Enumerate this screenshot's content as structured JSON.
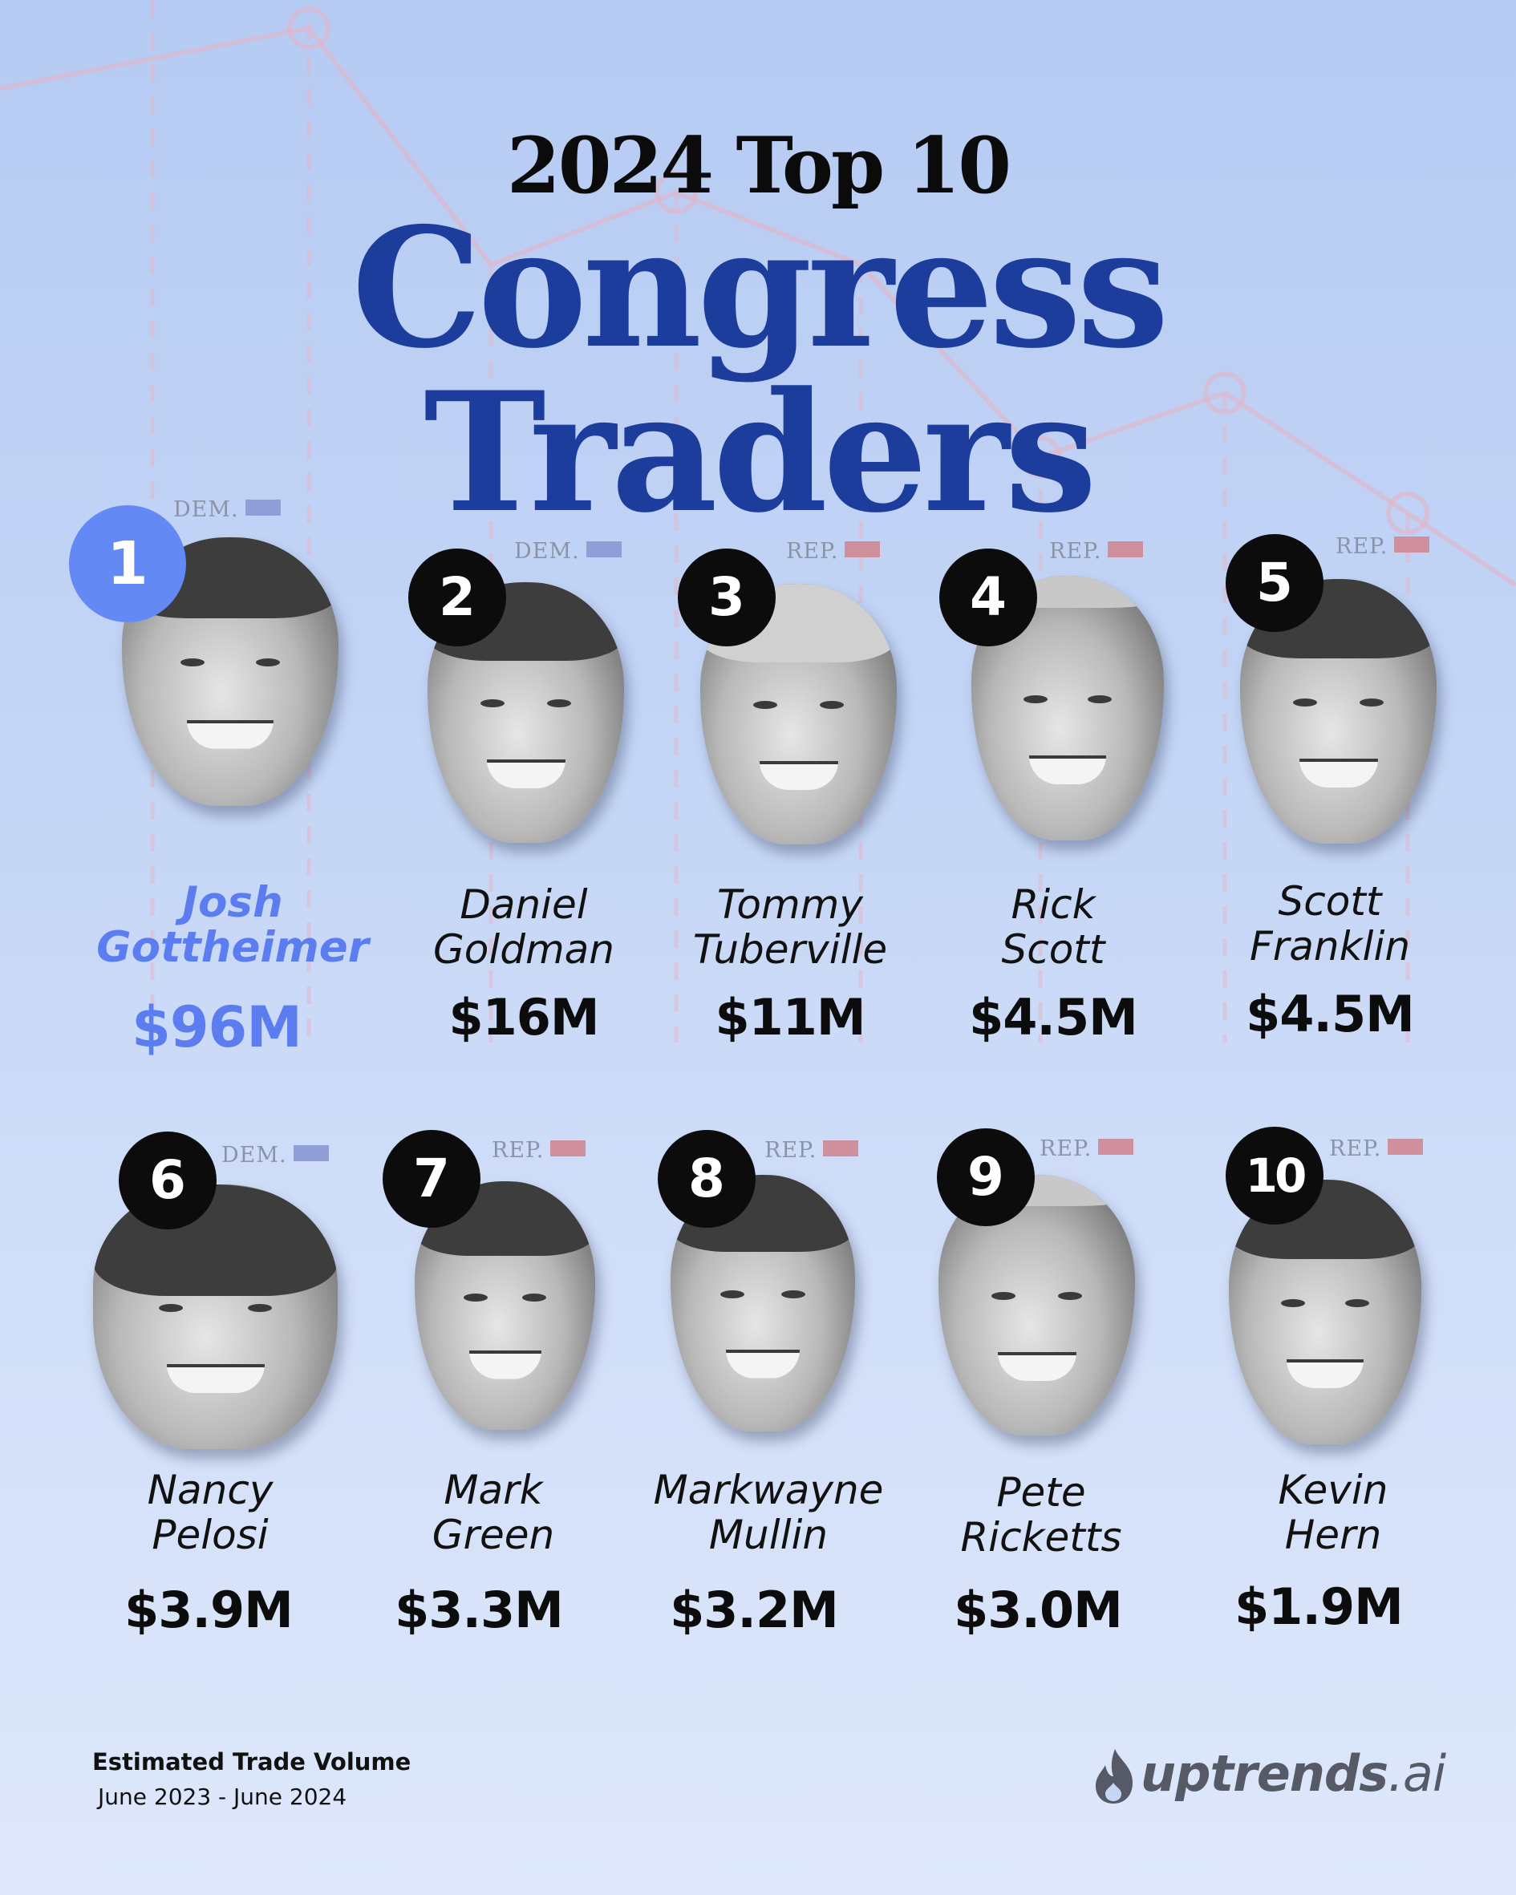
{
  "header": {
    "subtitle": "2024 Top 10",
    "title": "Congress Traders"
  },
  "colors": {
    "title_blue": "#1c3d9c",
    "highlight_blue": "#5b7df0",
    "dem_flag": "#8f9ed6",
    "rep_flag": "#cf8f9c",
    "background_top": "#b6cbf3",
    "background_bottom": "#dfe8fb"
  },
  "traders": [
    {
      "rank": "1",
      "first": "Josh",
      "last": "Gottheimer",
      "amount": "$96M",
      "party": "DEM.",
      "highlight": true
    },
    {
      "rank": "2",
      "first": "Daniel",
      "last": "Goldman",
      "amount": "$16M",
      "party": "DEM."
    },
    {
      "rank": "3",
      "first": "Tommy",
      "last": "Tuberville",
      "amount": "$11M",
      "party": "REP."
    },
    {
      "rank": "4",
      "first": "Rick",
      "last": "Scott",
      "amount": "$4.5M",
      "party": "REP."
    },
    {
      "rank": "5",
      "first": "Scott",
      "last": "Franklin",
      "amount": "$4.5M",
      "party": "REP."
    },
    {
      "rank": "6",
      "first": "Nancy",
      "last": "Pelosi",
      "amount": "$3.9M",
      "party": "DEM."
    },
    {
      "rank": "7",
      "first": "Mark",
      "last": "Green",
      "amount": "$3.3M",
      "party": "REP."
    },
    {
      "rank": "8",
      "first": "Markwayne",
      "last": "Mullin",
      "amount": "$3.2M",
      "party": "REP."
    },
    {
      "rank": "9",
      "first": "Pete",
      "last": "Ricketts",
      "amount": "$3.0M",
      "party": "REP."
    },
    {
      "rank": "10",
      "first": "Kevin",
      "last": "Hern",
      "amount": "$1.9M",
      "party": "REP."
    }
  ],
  "footer": {
    "title": "Estimated Trade Volume",
    "range": "June 2023 - June 2024",
    "brand_main": "uptrends",
    "brand_tld": ".ai",
    "brand_icon": "flame-icon"
  }
}
